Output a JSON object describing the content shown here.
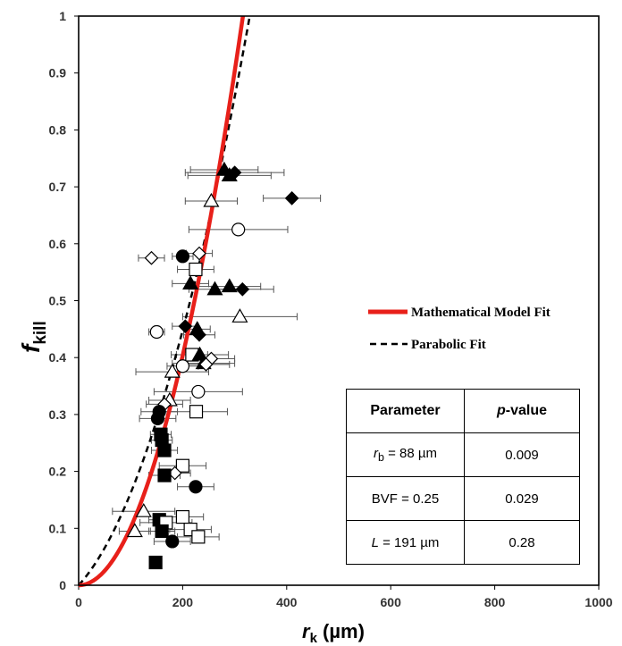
{
  "chart_data": {
    "type": "scatter",
    "xlabel": {
      "main": "r",
      "sub": "k",
      "unit": " (µm)"
    },
    "ylabel": {
      "main": "f",
      "sub": "kill"
    },
    "xlim": [
      0,
      1000
    ],
    "ylim": [
      0,
      1
    ],
    "xticks": [
      "0",
      "200",
      "400",
      "600",
      "800",
      "1000"
    ],
    "yticks": [
      "0",
      "0.1",
      "0.2",
      "0.3",
      "0.4",
      "0.5",
      "0.6",
      "0.7",
      "0.8",
      "0.9",
      "1"
    ],
    "colors": {
      "model": "#e8201a",
      "parabolic": "#000000",
      "axis": "#000000",
      "errorbar": "#555555"
    },
    "legend": [
      {
        "label": "Mathematical Model Fit",
        "style": "solid-red"
      },
      {
        "label": "Parabolic Fit",
        "style": "dashed-black"
      }
    ],
    "fits": {
      "model": {
        "formula": "f = 1.02e-5*r^2 - 5.6e-10*r^3",
        "x_range": [
          0,
          380
        ]
      },
      "parabolic": {
        "formula": "f = 6.2e-6*r^2 + 1.0e-3*r",
        "x_range": [
          0,
          395
        ]
      }
    },
    "points": [
      {
        "marker": "triangle",
        "filled": true,
        "x": 280,
        "y": 0.73,
        "err": 65
      },
      {
        "marker": "triangle",
        "filled": true,
        "x": 290,
        "y": 0.72,
        "err": 80
      },
      {
        "marker": "diamond",
        "filled": true,
        "x": 300,
        "y": 0.725,
        "err": 95
      },
      {
        "marker": "diamond",
        "filled": true,
        "x": 410,
        "y": 0.68,
        "err": 55
      },
      {
        "marker": "triangle",
        "filled": false,
        "x": 255,
        "y": 0.675,
        "err": 50
      },
      {
        "marker": "circle",
        "filled": false,
        "x": 307,
        "y": 0.625,
        "err": 95
      },
      {
        "marker": "diamond",
        "filled": false,
        "x": 140,
        "y": 0.575,
        "err": 25
      },
      {
        "marker": "circle",
        "filled": true,
        "x": 200,
        "y": 0.578,
        "err": 20
      },
      {
        "marker": "diamond",
        "filled": false,
        "x": 232,
        "y": 0.583,
        "err": 25
      },
      {
        "marker": "square",
        "filled": false,
        "x": 225,
        "y": 0.555,
        "err": 35
      },
      {
        "marker": "triangle",
        "filled": true,
        "x": 215,
        "y": 0.53,
        "err": 35
      },
      {
        "marker": "triangle",
        "filled": true,
        "x": 262,
        "y": 0.52,
        "err": 50
      },
      {
        "marker": "triangle",
        "filled": true,
        "x": 290,
        "y": 0.525,
        "err": 60
      },
      {
        "marker": "diamond",
        "filled": true,
        "x": 315,
        "y": 0.52,
        "err": 60
      },
      {
        "marker": "triangle",
        "filled": false,
        "x": 310,
        "y": 0.472,
        "err": 110
      },
      {
        "marker": "diamond",
        "filled": true,
        "x": 205,
        "y": 0.455,
        "err": 25
      },
      {
        "marker": "triangle",
        "filled": true,
        "x": 228,
        "y": 0.45,
        "err": 25
      },
      {
        "marker": "diamond",
        "filled": true,
        "x": 232,
        "y": 0.44,
        "err": 30
      },
      {
        "marker": "circle",
        "filled": false,
        "x": 150,
        "y": 0.445,
        "err": 15
      },
      {
        "marker": "square",
        "filled": false,
        "x": 218,
        "y": 0.405,
        "err": 30
      },
      {
        "marker": "triangle",
        "filled": true,
        "x": 233,
        "y": 0.405,
        "err": 55
      },
      {
        "marker": "triangle",
        "filled": true,
        "x": 240,
        "y": 0.39,
        "err": 60
      },
      {
        "marker": "circle",
        "filled": false,
        "x": 200,
        "y": 0.385,
        "err": 30
      },
      {
        "marker": "diamond",
        "filled": false,
        "x": 255,
        "y": 0.398,
        "err": 45
      },
      {
        "marker": "diamond",
        "filled": false,
        "x": 245,
        "y": 0.388,
        "err": 45
      },
      {
        "marker": "triangle",
        "filled": false,
        "x": 180,
        "y": 0.375,
        "err": 70
      },
      {
        "marker": "circle",
        "filled": false,
        "x": 230,
        "y": 0.34,
        "err": 85
      },
      {
        "marker": "triangle",
        "filled": false,
        "x": 175,
        "y": 0.325,
        "err": 40
      },
      {
        "marker": "diamond",
        "filled": false,
        "x": 165,
        "y": 0.318,
        "err": 35
      },
      {
        "marker": "circle",
        "filled": true,
        "x": 155,
        "y": 0.305,
        "err": 35
      },
      {
        "marker": "square",
        "filled": false,
        "x": 226,
        "y": 0.305,
        "err": 60
      },
      {
        "marker": "circle",
        "filled": true,
        "x": 152,
        "y": 0.293,
        "err": 35
      },
      {
        "marker": "square",
        "filled": true,
        "x": 158,
        "y": 0.265,
        "err": 20
      },
      {
        "marker": "square",
        "filled": true,
        "x": 160,
        "y": 0.255,
        "err": 20
      },
      {
        "marker": "square",
        "filled": true,
        "x": 165,
        "y": 0.237,
        "err": 25
      },
      {
        "marker": "square",
        "filled": false,
        "x": 200,
        "y": 0.21,
        "err": 45
      },
      {
        "marker": "diamond",
        "filled": false,
        "x": 185,
        "y": 0.197,
        "err": 30
      },
      {
        "marker": "square",
        "filled": true,
        "x": 165,
        "y": 0.193,
        "err": 30
      },
      {
        "marker": "circle",
        "filled": true,
        "x": 225,
        "y": 0.173,
        "err": 35
      },
      {
        "marker": "triangle",
        "filled": false,
        "x": 125,
        "y": 0.13,
        "err": 60
      },
      {
        "marker": "square",
        "filled": false,
        "x": 200,
        "y": 0.12,
        "err": 40
      },
      {
        "marker": "square",
        "filled": true,
        "x": 155,
        "y": 0.115,
        "err": 20
      },
      {
        "marker": "square",
        "filled": false,
        "x": 168,
        "y": 0.11,
        "err": 50
      },
      {
        "marker": "square",
        "filled": true,
        "x": 160,
        "y": 0.095,
        "err": 25
      },
      {
        "marker": "triangle",
        "filled": false,
        "x": 108,
        "y": 0.095,
        "err": 30
      },
      {
        "marker": "square",
        "filled": false,
        "x": 215,
        "y": 0.098,
        "err": 40
      },
      {
        "marker": "square",
        "filled": false,
        "x": 230,
        "y": 0.085,
        "err": 40
      },
      {
        "marker": "circle",
        "filled": true,
        "x": 180,
        "y": 0.077,
        "err": 35
      },
      {
        "marker": "square",
        "filled": true,
        "x": 148,
        "y": 0.04,
        "err": 10
      }
    ]
  },
  "table": {
    "headers": [
      "Parameter",
      "p-value"
    ],
    "rows": [
      {
        "param_main": "r",
        "param_sub": "b",
        "param_rest": " = 88 µm",
        "pvalue": "0.009"
      },
      {
        "param_main": "BVF = 0.25",
        "param_sub": "",
        "param_rest": "",
        "pvalue": "0.029"
      },
      {
        "param_main": "L",
        "param_sub": "",
        "param_rest": " = 191 µm",
        "pvalue": "0.28"
      }
    ]
  }
}
